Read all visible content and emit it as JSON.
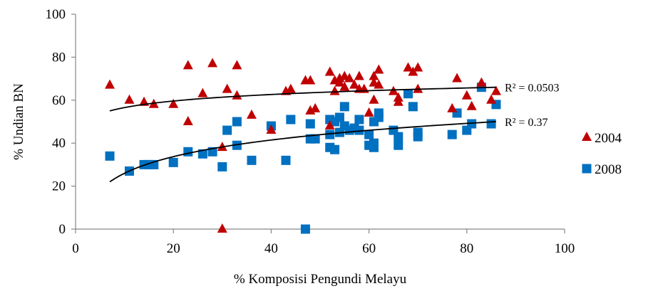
{
  "chart_data": {
    "type": "scatter",
    "xlabel": "% Komposisi Pengundi Melayu",
    "ylabel": "% Undian BN",
    "xlim": [
      0,
      100
    ],
    "ylim": [
      0,
      100
    ],
    "xticks": [
      "0",
      "20",
      "40",
      "60",
      "80",
      "100"
    ],
    "yticks": [
      "0",
      "20",
      "40",
      "60",
      "80",
      "100"
    ],
    "grid": false,
    "legend_position": "right",
    "series": [
      {
        "name": "2004",
        "marker": "triangle",
        "color": "#C00000",
        "trendline": {
          "type": "logarithmic",
          "label": "R² = 0.0503",
          "x_start": 7,
          "x_end": 86,
          "y_start": 55,
          "y_end": 66
        },
        "points": [
          [
            7,
            67
          ],
          [
            11,
            60
          ],
          [
            14,
            59
          ],
          [
            16,
            58
          ],
          [
            20,
            58
          ],
          [
            23,
            76
          ],
          [
            23,
            50
          ],
          [
            26,
            63
          ],
          [
            28,
            77
          ],
          [
            30,
            38
          ],
          [
            30,
            0
          ],
          [
            31,
            65
          ],
          [
            33,
            76
          ],
          [
            33,
            62
          ],
          [
            36,
            53
          ],
          [
            40,
            46
          ],
          [
            43,
            64
          ],
          [
            44,
            65
          ],
          [
            47,
            69
          ],
          [
            48,
            69
          ],
          [
            48,
            55
          ],
          [
            49,
            56
          ],
          [
            52,
            73
          ],
          [
            52,
            48
          ],
          [
            53,
            64
          ],
          [
            53,
            69
          ],
          [
            54,
            70
          ],
          [
            54,
            68
          ],
          [
            55,
            71
          ],
          [
            55,
            66
          ],
          [
            56,
            70
          ],
          [
            57,
            67
          ],
          [
            58,
            71
          ],
          [
            58,
            65
          ],
          [
            59,
            65
          ],
          [
            60,
            54
          ],
          [
            61,
            68
          ],
          [
            61,
            60
          ],
          [
            61,
            71
          ],
          [
            62,
            74
          ],
          [
            62,
            67
          ],
          [
            65,
            64
          ],
          [
            66,
            61
          ],
          [
            66,
            59
          ],
          [
            68,
            75
          ],
          [
            69,
            73
          ],
          [
            70,
            75
          ],
          [
            70,
            65
          ],
          [
            77,
            56
          ],
          [
            78,
            70
          ],
          [
            80,
            62
          ],
          [
            81,
            57
          ],
          [
            83,
            68
          ],
          [
            85,
            60
          ],
          [
            86,
            64
          ]
        ]
      },
      {
        "name": "2008",
        "marker": "square",
        "color": "#0070C0",
        "trendline": {
          "type": "logarithmic",
          "label": "R² = 0.37",
          "x_start": 7,
          "x_end": 86,
          "y_start": 22,
          "y_end": 50
        },
        "points": [
          [
            7,
            34
          ],
          [
            11,
            27
          ],
          [
            14,
            30
          ],
          [
            15,
            30
          ],
          [
            16,
            30
          ],
          [
            20,
            31
          ],
          [
            23,
            36
          ],
          [
            26,
            35
          ],
          [
            28,
            36
          ],
          [
            30,
            29
          ],
          [
            31,
            46
          ],
          [
            33,
            39
          ],
          [
            33,
            50
          ],
          [
            36,
            32
          ],
          [
            40,
            48
          ],
          [
            43,
            32
          ],
          [
            44,
            51
          ],
          [
            47,
            0
          ],
          [
            48,
            49
          ],
          [
            48,
            42
          ],
          [
            49,
            42
          ],
          [
            52,
            38
          ],
          [
            52,
            44
          ],
          [
            52,
            51
          ],
          [
            53,
            50
          ],
          [
            53,
            37
          ],
          [
            54,
            52
          ],
          [
            54,
            45
          ],
          [
            55,
            57
          ],
          [
            55,
            48
          ],
          [
            56,
            46
          ],
          [
            57,
            47
          ],
          [
            58,
            51
          ],
          [
            58,
            46
          ],
          [
            60,
            39
          ],
          [
            60,
            44
          ],
          [
            61,
            38
          ],
          [
            61,
            40
          ],
          [
            61,
            50
          ],
          [
            62,
            52
          ],
          [
            62,
            54
          ],
          [
            65,
            46
          ],
          [
            66,
            43
          ],
          [
            66,
            39
          ],
          [
            68,
            63
          ],
          [
            69,
            57
          ],
          [
            70,
            45
          ],
          [
            70,
            43
          ],
          [
            77,
            44
          ],
          [
            78,
            54
          ],
          [
            80,
            46
          ],
          [
            81,
            49
          ],
          [
            83,
            66
          ],
          [
            85,
            49
          ],
          [
            86,
            58
          ]
        ]
      }
    ]
  }
}
